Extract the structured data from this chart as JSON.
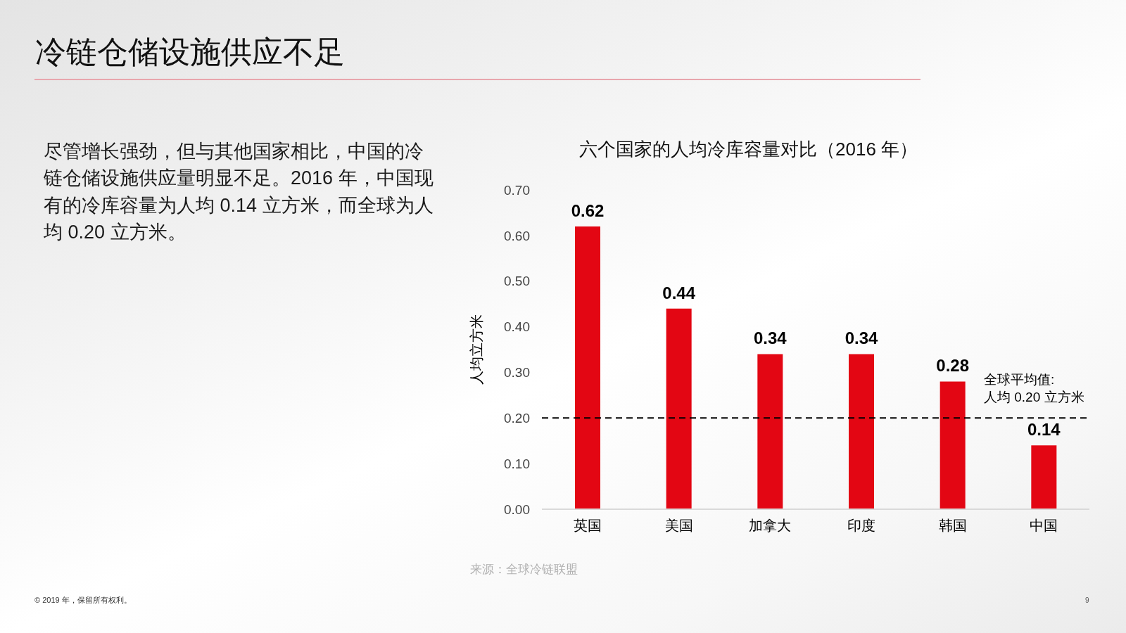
{
  "chart_data": {
    "type": "bar",
    "title": "冷链仓储设施供应不足",
    "subtitle": "六个国家的人均冷库容量对比（2016 年）",
    "ylabel": "人均立方米",
    "categories": [
      "英国",
      "美国",
      "加拿大",
      "印度",
      "韩国",
      "中国"
    ],
    "values": [
      0.62,
      0.44,
      0.34,
      0.34,
      0.28,
      0.14
    ],
    "color": "#e30613",
    "ylim": [
      0,
      0.7
    ],
    "yticks": [
      {
        "value": 0,
        "label": "0.00"
      },
      {
        "value": 0.1,
        "label": "0.10"
      },
      {
        "value": 0.2,
        "label": "0.20"
      },
      {
        "value": 0.3,
        "label": "0.30"
      },
      {
        "value": 0.4,
        "label": "0.40"
      },
      {
        "value": 0.5,
        "label": "0.50"
      },
      {
        "value": 0.6,
        "label": "0.60"
      },
      {
        "value": 0.7,
        "label": "0.70"
      }
    ],
    "data_labels": true,
    "ref_lines": [
      {
        "axis": "y",
        "value": 0.2,
        "label": "全球平均值:\n人均 0.20 立方米",
        "color": "#000000",
        "line_style": "dashed"
      }
    ],
    "annotations": [
      "尽管增长强劲，但与其他国家相比，中国的冷链仓储设施供应量明显不足。2016 年，中国现有的冷库容量为人均 0.14 立方米，而全球为人均 0.20 立方米。",
      "来源：全球冷链联盟",
      "© 2019 年，保留所有权利。",
      "9"
    ]
  }
}
